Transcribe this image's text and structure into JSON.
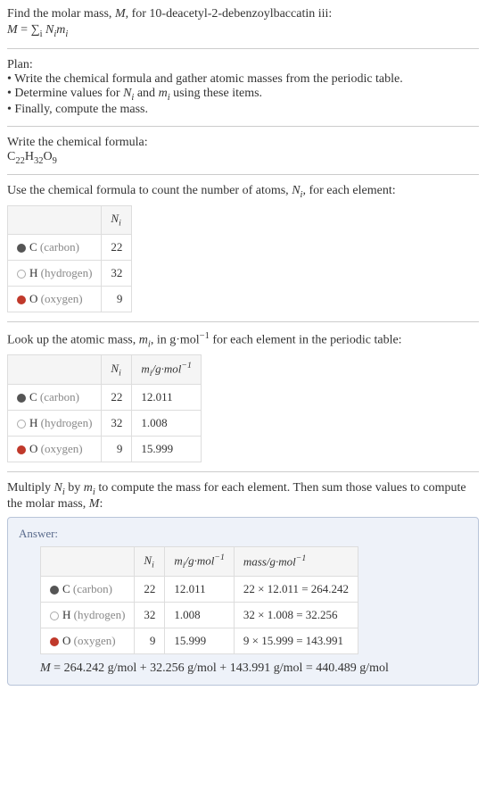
{
  "intro": {
    "line1_a": "Find the molar mass, ",
    "line1_b": ", for 10-deacetyl-2-debenzoylbaccatin iii:",
    "M": "M",
    "eq": " = ",
    "sum": "∑",
    "sum_sub": "i",
    "Ni": "N",
    "Ni_sub": "i",
    "mi": "m",
    "mi_sub": "i"
  },
  "plan": {
    "header": "Plan:",
    "b1": "• Write the chemical formula and gather atomic masses from the periodic table.",
    "b2_a": "• Determine values for ",
    "b2_b": " and ",
    "b2_c": " using these items.",
    "b3": "• Finally, compute the mass."
  },
  "chemformula": {
    "header": "Write the chemical formula:",
    "C": "C",
    "Cn": "22",
    "H": "H",
    "Hn": "32",
    "O": "O",
    "On": "9"
  },
  "count": {
    "header_a": "Use the chemical formula to count the number of atoms, ",
    "header_b": ", for each element:",
    "col_Ni": "N",
    "col_Ni_sub": "i",
    "rows": [
      {
        "dot": "dot-c",
        "sym": "C",
        "name": " (carbon)",
        "n": "22"
      },
      {
        "dot": "dot-h",
        "sym": "H",
        "name": " (hydrogen)",
        "n": "32"
      },
      {
        "dot": "dot-o",
        "sym": "O",
        "name": " (oxygen)",
        "n": "9"
      }
    ]
  },
  "masses": {
    "header_a": "Look up the atomic mass, ",
    "header_b": ", in g·mol",
    "header_c": " for each element in the periodic table:",
    "neg1": "−1",
    "col_mi": "m",
    "col_mi_sub": "i",
    "col_unit_a": "/g·mol",
    "rows": [
      {
        "dot": "dot-c",
        "sym": "C",
        "name": " (carbon)",
        "n": "22",
        "m": "12.011"
      },
      {
        "dot": "dot-h",
        "sym": "H",
        "name": " (hydrogen)",
        "n": "32",
        "m": "1.008"
      },
      {
        "dot": "dot-o",
        "sym": "O",
        "name": " (oxygen)",
        "n": "9",
        "m": "15.999"
      }
    ]
  },
  "compute": {
    "line_a": "Multiply ",
    "line_b": " by ",
    "line_c": " to compute the mass for each element. Then sum those values to compute the molar mass, ",
    "line_d": ":"
  },
  "answer": {
    "label": "Answer:",
    "col_mass_a": "mass/g·mol",
    "rows": [
      {
        "dot": "dot-c",
        "sym": "C",
        "name": " (carbon)",
        "n": "22",
        "m": "12.011",
        "mass": "22 × 12.011 = 264.242"
      },
      {
        "dot": "dot-h",
        "sym": "H",
        "name": " (hydrogen)",
        "n": "32",
        "m": "1.008",
        "mass": "32 × 1.008 = 32.256"
      },
      {
        "dot": "dot-o",
        "sym": "O",
        "name": " (oxygen)",
        "n": "9",
        "m": "15.999",
        "mass": "9 × 15.999 = 143.991"
      }
    ],
    "sum_M": "M",
    "sum_eq": " = 264.242 g/mol + 32.256 g/mol + 143.991 g/mol = 440.489 g/mol"
  }
}
